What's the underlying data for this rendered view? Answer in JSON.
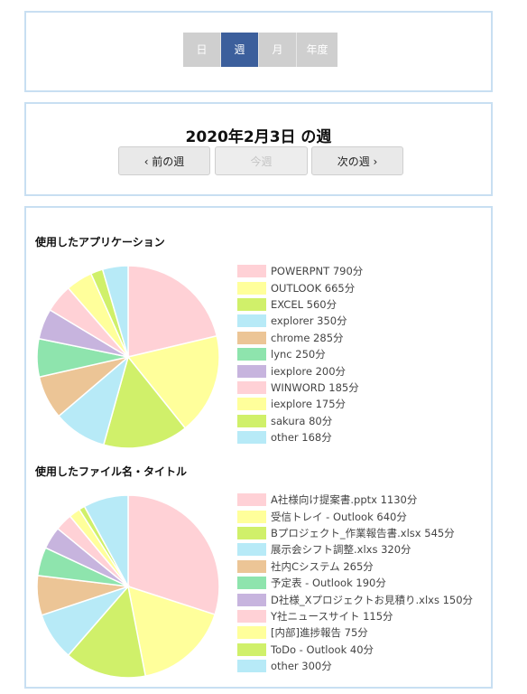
{
  "period_tabs": [
    {
      "label": "日",
      "active": false
    },
    {
      "label": "週",
      "active": true
    },
    {
      "label": "月",
      "active": false
    },
    {
      "label": "年度",
      "active": false
    }
  ],
  "week": {
    "title": "2020年2月3日 の週",
    "prev_label": "‹  前の週",
    "current_label": "今週",
    "next_label": "次の週  ›"
  },
  "palette": [
    "#ffd1d6",
    "#ffff9b",
    "#d0f06a",
    "#b7eaf7",
    "#ecc596",
    "#8ee4ad",
    "#c7b4de",
    "#ffd1d6",
    "#ffff9b",
    "#d0f06a",
    "#b7eaf7"
  ],
  "chart_data": [
    {
      "type": "pie",
      "title": "使用したアプリケーション",
      "unit": "分",
      "labels": [
        "POWERPNT",
        "OUTLOOK",
        "EXCEL",
        "explorer",
        "chrome",
        "lync",
        "iexplore",
        "WINWORD",
        "iexplore",
        "sakura",
        "other"
      ],
      "values": [
        790,
        665,
        560,
        350,
        285,
        250,
        200,
        185,
        175,
        80,
        168
      ],
      "legend_text": [
        "POWERPNT 790分",
        "OUTLOOK 665分",
        "EXCEL 560分",
        "explorer 350分",
        "chrome 285分",
        "lync 250分",
        "iexplore 200分",
        "WINWORD 185分",
        "iexplore 175分",
        "sakura 80分",
        "other 168分"
      ],
      "legend_position": "right"
    },
    {
      "type": "pie",
      "title": "使用したファイル名・タイトル",
      "unit": "分",
      "labels": [
        "A社様向け提案書.pptx",
        "受信トレイ - Outlook",
        "Bプロジェクト_作業報告書.xlsx",
        "展示会シフト調整.xlxs",
        "社内Cシステム",
        "予定表 - Outlook",
        "D社様_Xプロジェクトお見積り.xlxs",
        "Y社ニュースサイト",
        "[内部]進捗報告",
        "ToDo - Outlook",
        "other"
      ],
      "values": [
        1130,
        640,
        545,
        320,
        265,
        190,
        150,
        115,
        75,
        40,
        300
      ],
      "legend_text": [
        "A社様向け提案書.pptx 1130分",
        "受信トレイ - Outlook 640分",
        "Bプロジェクト_作業報告書.xlsx 545分",
        "展示会シフト調整.xlxs 320分",
        "社内Cシステム 265分",
        "予定表 - Outlook 190分",
        "D社様_Xプロジェクトお見積り.xlxs 150分",
        "Y社ニュースサイト 115分",
        "[内部]進捗報告 75分",
        "ToDo - Outlook 40分",
        "other 300分"
      ],
      "legend_position": "right"
    }
  ]
}
